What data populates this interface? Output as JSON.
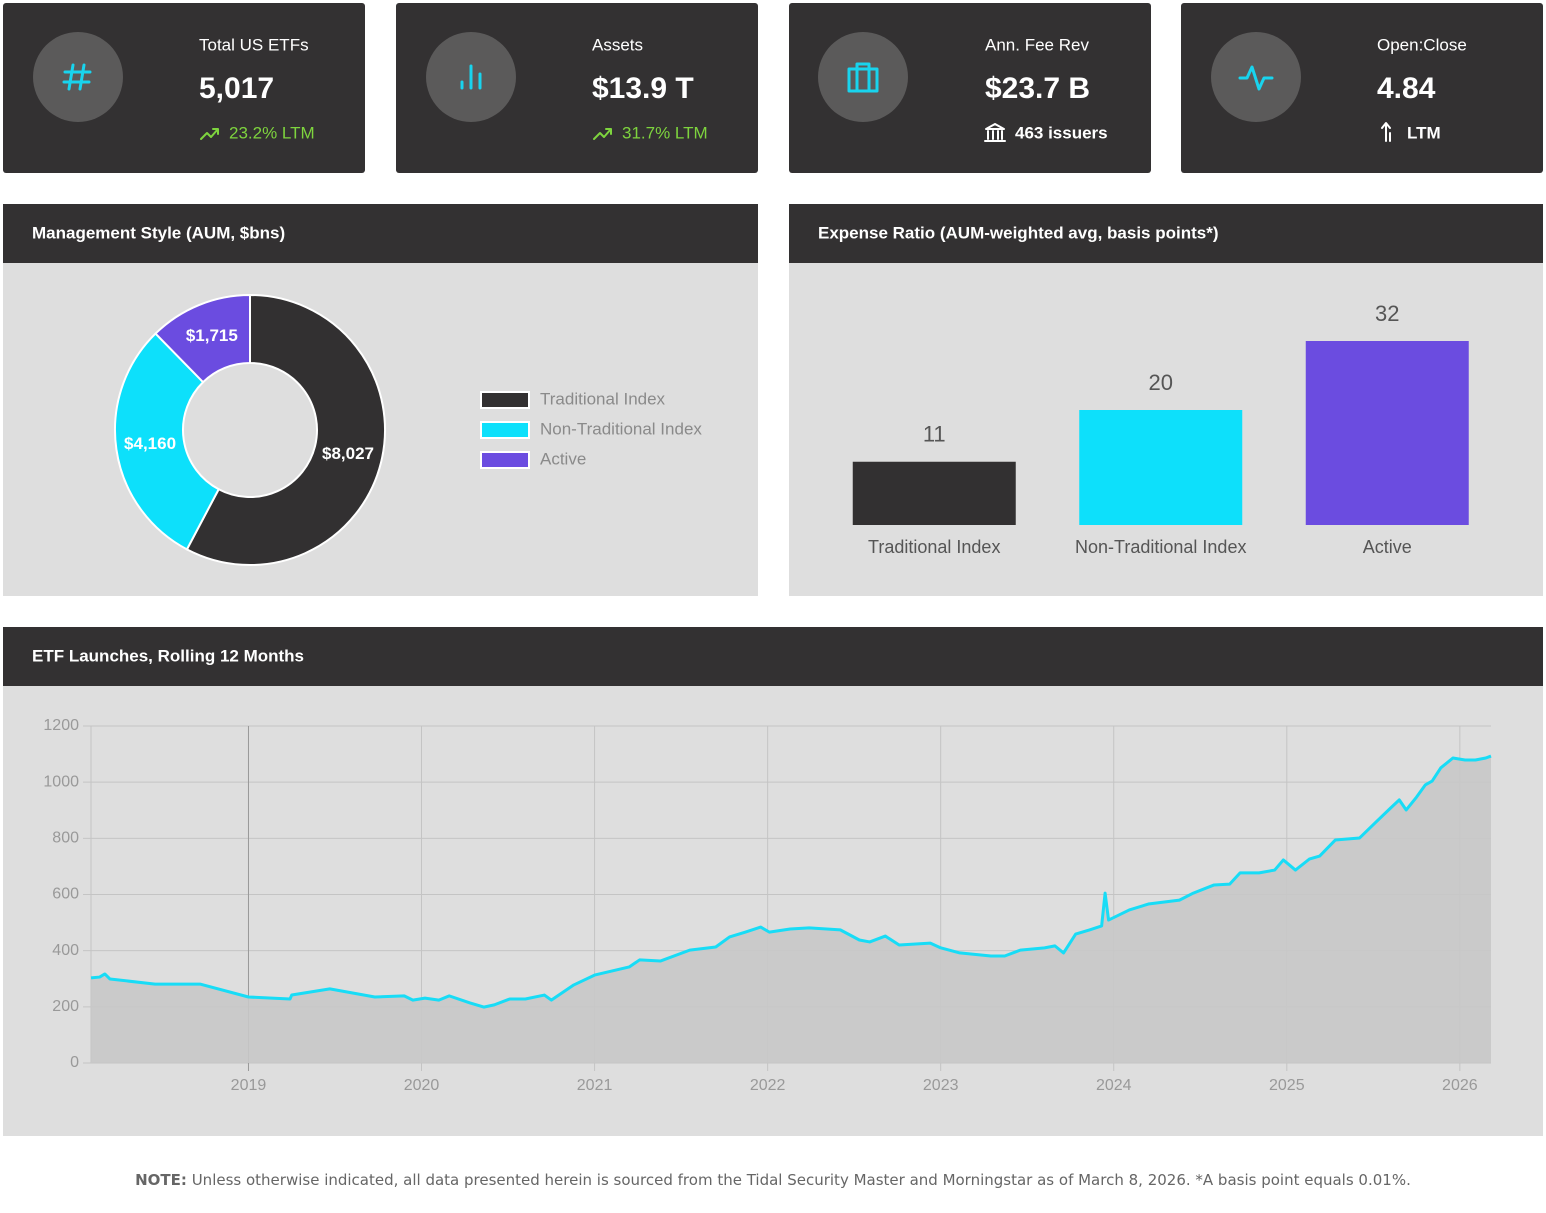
{
  "cards": [
    {
      "label": "Total US ETFs",
      "value": "5,017",
      "change": "23.2% LTM"
    },
    {
      "label": "Assets",
      "value": "$13.9 T",
      "change": "31.7% LTM"
    },
    {
      "label": "Ann. Fee Rev",
      "value": "$23.7 B",
      "change": "463 issuers"
    },
    {
      "label": "Open:Close",
      "value": "4.84",
      "change": "LTM"
    }
  ],
  "chart_data": [
    {
      "type": "donut",
      "title": "Management Style (AUM, $bns)",
      "categories": [
        "Traditional Index",
        "Non-Traditional Index",
        "Active"
      ],
      "values": [
        8027,
        4160,
        1715
      ],
      "value_labels": [
        "$8,027",
        "$4,160",
        "$1,715"
      ],
      "colors": [
        "#323031",
        "#0de0fb",
        "#6b4ce0"
      ],
      "legend": "right"
    },
    {
      "type": "bar",
      "title": "Expense Ratio (AUM-weighted avg, basis points*)",
      "categories": [
        "Traditional Index",
        "Non-Traditional Index",
        "Active"
      ],
      "values": [
        11,
        20,
        32
      ],
      "colors": [
        "#323031",
        "#0de0fb",
        "#6b4ce0"
      ]
    },
    {
      "type": "line",
      "title": "ETF Launches, Rolling 12 Months",
      "x": [
        2018.09,
        2018.14,
        2018.17,
        2018.2,
        2018.46,
        2018.72,
        2019.0,
        2019.24,
        2019.25,
        2019.47,
        2019.73,
        2019.9,
        2019.95,
        2020.02,
        2020.1,
        2020.16,
        2020.28,
        2020.36,
        2020.42,
        2020.51,
        2020.6,
        2020.71,
        2020.75,
        2020.88,
        2021.0,
        2021.2,
        2021.26,
        2021.38,
        2021.55,
        2021.7,
        2021.78,
        2021.87,
        2021.96,
        2022.01,
        2022.13,
        2022.24,
        2022.42,
        2022.53,
        2022.59,
        2022.68,
        2022.76,
        2022.94,
        2023.0,
        2023.11,
        2023.29,
        2023.37,
        2023.46,
        2023.6,
        2023.66,
        2023.71,
        2023.78,
        2023.86,
        2023.93,
        2023.95,
        2023.97,
        2024.09,
        2024.2,
        2024.38,
        2024.46,
        2024.58,
        2024.67,
        2024.73,
        2024.84,
        2024.93,
        2024.98,
        2025.05,
        2025.13,
        2025.19,
        2025.28,
        2025.42,
        2025.51,
        2025.6,
        2025.65,
        2025.69,
        2025.75,
        2025.8,
        2025.84,
        2025.89,
        2025.96,
        2026.03,
        2026.09,
        2026.15,
        2026.18
      ],
      "values": [
        303,
        306,
        317,
        299,
        281,
        281,
        235,
        228,
        242,
        264,
        235,
        239,
        224,
        231,
        224,
        239,
        214,
        199,
        207,
        228,
        228,
        242,
        224,
        278,
        313,
        342,
        367,
        363,
        402,
        413,
        449,
        466,
        484,
        466,
        477,
        481,
        474,
        438,
        431,
        452,
        420,
        427,
        410,
        392,
        381,
        381,
        402,
        410,
        417,
        392,
        459,
        474,
        488,
        605,
        509,
        545,
        566,
        580,
        605,
        634,
        637,
        677,
        677,
        687,
        723,
        687,
        726,
        737,
        794,
        801,
        855,
        908,
        937,
        901,
        947,
        990,
        1004,
        1051,
        1086,
        1079,
        1079,
        1086,
        1093
      ],
      "color": "#18dcf6",
      "fill": "#c8c8c8",
      "xlim": [
        2018.09,
        2026.18
      ],
      "xticks": [
        2019,
        2020,
        2021,
        2022,
        2023,
        2024,
        2025,
        2026
      ],
      "ylim": [
        0,
        1200
      ],
      "yticks": [
        0,
        200,
        400,
        600,
        800,
        1000,
        1200
      ],
      "grid": true
    }
  ],
  "note": {
    "label": "NOTE:",
    "text": "Unless otherwise indicated, all data presented herein is sourced from the Tidal Security Master and Morningstar as of March 8, 2026. *A basis point equals 0.01%."
  }
}
